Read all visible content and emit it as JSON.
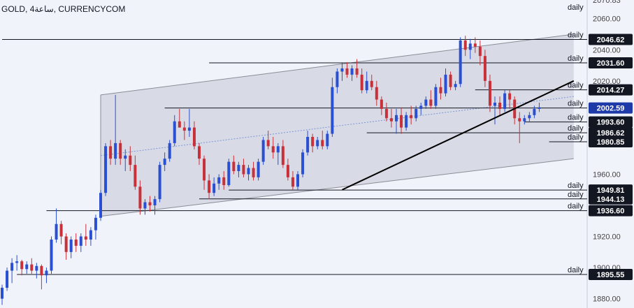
{
  "header": {
    "symbol": "GOLD",
    "interval": "4ساعة",
    "source": "CURRENCYCOM"
  },
  "colors": {
    "background": "#f0f3fa",
    "channel_fill": "#d3d6e0",
    "channel_line": "#8a8d96",
    "midline": "#7b96d8",
    "bull": "#2b4fd1",
    "bear": "#c8303a",
    "level_line": "#131722",
    "price_badge": "#131722",
    "current_badge": "#1e3aa8",
    "axis_text": "#444444"
  },
  "chart_data": {
    "type": "candlestick",
    "title": "",
    "ylim": [
      1874,
      2072
    ],
    "y_ticks": [
      {
        "value": 2060,
        "label": "2060.00"
      },
      {
        "value": 2040,
        "label": "2040.00"
      },
      {
        "value": 2020,
        "label": "2020.00"
      },
      {
        "value": 1960,
        "label": "1960.00"
      },
      {
        "value": 1920,
        "label": "1920.00"
      },
      {
        "value": 1900,
        "label": "1900.00"
      },
      {
        "value": 1880,
        "label": "1880.00"
      }
    ],
    "top_cut_label": "2070.83",
    "levels": [
      {
        "value": 2046.62,
        "label": "2046.62",
        "tag": "daily",
        "x_start": 0,
        "current": false
      },
      {
        "value": 2031.6,
        "label": "2031.60",
        "tag": "daily",
        "x_start": 42,
        "current": false
      },
      {
        "value": 2014.27,
        "label": "2014.27",
        "tag": "daily",
        "x_start": 96,
        "current": false
      },
      {
        "value": 2002.59,
        "label": "2002.59",
        "tag": "daily",
        "x_start": 33,
        "current": true
      },
      {
        "value": 1993.6,
        "label": "1993.60",
        "tag": "daily",
        "x_start": 106,
        "current": false
      },
      {
        "value": 1986.62,
        "label": "1986.62",
        "tag": "daily",
        "x_start": 74,
        "current": false
      },
      {
        "value": 1980.85,
        "label": "1980.85",
        "tag": "daily",
        "x_start": 111,
        "current": false
      },
      {
        "value": 1949.81,
        "label": "1949.81",
        "tag": "daily",
        "x_start": 46,
        "current": false
      },
      {
        "value": 1944.13,
        "label": "1944.13",
        "tag": "daily",
        "x_start": 40,
        "current": false
      },
      {
        "value": 1936.6,
        "label": "1936.60",
        "tag": "daily",
        "x_start": 9,
        "current": false
      },
      {
        "value": 1895.55,
        "label": "1895.55",
        "tag": "daily",
        "x_start": 3,
        "current": false
      }
    ],
    "channel": {
      "start_index": 20,
      "end_index": 116,
      "upper": [
        2011.0,
        2050.0
      ],
      "lower": [
        1933.0,
        1970.0
      ],
      "mid": [
        1972.0,
        2010.0
      ]
    },
    "trendline": {
      "from": [
        69,
        1950.0
      ],
      "to": [
        116,
        2020.0
      ]
    },
    "candles": [
      [
        1880.0,
        1889.0,
        1876.0,
        1887.0
      ],
      [
        1887.0,
        1900.0,
        1885.0,
        1898.0
      ],
      [
        1898.0,
        1906.0,
        1890.0,
        1903.0
      ],
      [
        1903.0,
        1908.0,
        1898.0,
        1904.0
      ],
      [
        1904.0,
        1905.0,
        1895.0,
        1899.0
      ],
      [
        1899.0,
        1904.0,
        1896.0,
        1902.0
      ],
      [
        1902.0,
        1906.0,
        1896.0,
        1898.0
      ],
      [
        1898.0,
        1903.0,
        1893.0,
        1901.0
      ],
      [
        1901.0,
        1902.0,
        1886.0,
        1895.0
      ],
      [
        1895.0,
        1900.0,
        1890.0,
        1898.0
      ],
      [
        1898.0,
        1920.0,
        1896.0,
        1918.0
      ],
      [
        1918.0,
        1938.0,
        1916.0,
        1928.0
      ],
      [
        1928.0,
        1930.0,
        1915.0,
        1920.0
      ],
      [
        1920.0,
        1922.0,
        1905.0,
        1910.0
      ],
      [
        1910.0,
        1920.0,
        1906.0,
        1918.0
      ],
      [
        1918.0,
        1922.0,
        1910.0,
        1914.0
      ],
      [
        1914.0,
        1922.0,
        1910.0,
        1920.0
      ],
      [
        1920.0,
        1928.0,
        1914.0,
        1918.0
      ],
      [
        1918.0,
        1926.0,
        1914.0,
        1924.0
      ],
      [
        1924.0,
        1934.0,
        1918.0,
        1932.0
      ],
      [
        1932.0,
        1950.0,
        1930.0,
        1948.0
      ],
      [
        1948.0,
        1980.0,
        1946.0,
        1978.0
      ],
      [
        1978.0,
        1982.0,
        1966.0,
        1970.0
      ],
      [
        1970.0,
        2011.0,
        1966.0,
        1980.0
      ],
      [
        1980.0,
        1982.0,
        1966.0,
        1970.0
      ],
      [
        1970.0,
        1976.0,
        1962.0,
        1972.0
      ],
      [
        1972.0,
        1978.0,
        1962.0,
        1966.0
      ],
      [
        1966.0,
        1972.0,
        1950.0,
        1952.0
      ],
      [
        1952.0,
        1956.0,
        1934.0,
        1938.0
      ],
      [
        1938.0,
        1944.0,
        1934.0,
        1942.0
      ],
      [
        1942.0,
        1946.0,
        1936.0,
        1940.0
      ],
      [
        1940.0,
        1946.0,
        1934.0,
        1944.0
      ],
      [
        1944.0,
        1968.0,
        1942.0,
        1966.0
      ],
      [
        1966.0,
        1974.0,
        1962.0,
        1970.0
      ],
      [
        1970.0,
        1982.0,
        1968.0,
        1980.0
      ],
      [
        1980.0,
        1998.0,
        1978.0,
        1994.0
      ],
      [
        1994.0,
        2002.0,
        1990.0,
        1990.0
      ],
      [
        1990.0,
        1994.0,
        1982.0,
        1988.0
      ],
      [
        1988.0,
        2002.0,
        1984.0,
        1990.0
      ],
      [
        1990.0,
        1994.0,
        1976.0,
        1978.0
      ],
      [
        1978.0,
        1980.0,
        1966.0,
        1970.0
      ],
      [
        1970.0,
        1972.0,
        1950.0,
        1956.0
      ],
      [
        1956.0,
        1960.0,
        1944.0,
        1948.0
      ],
      [
        1948.0,
        1958.0,
        1946.0,
        1954.0
      ],
      [
        1954.0,
        1960.0,
        1950.0,
        1958.0
      ],
      [
        1958.0,
        1962.0,
        1950.0,
        1953.0
      ],
      [
        1953.0,
        1970.0,
        1952.0,
        1968.0
      ],
      [
        1968.0,
        1972.0,
        1960.0,
        1962.0
      ],
      [
        1962.0,
        1968.0,
        1958.0,
        1966.0
      ],
      [
        1966.0,
        1970.0,
        1958.0,
        1960.0
      ],
      [
        1960.0,
        1966.0,
        1956.0,
        1964.0
      ],
      [
        1964.0,
        1968.0,
        1956.0,
        1958.0
      ],
      [
        1958.0,
        1970.0,
        1956.0,
        1968.0
      ],
      [
        1968.0,
        1984.0,
        1966.0,
        1982.0
      ],
      [
        1982.0,
        1988.0,
        1976.0,
        1978.0
      ],
      [
        1978.0,
        1984.0,
        1970.0,
        1974.0
      ],
      [
        1974.0,
        1980.0,
        1966.0,
        1978.0
      ],
      [
        1978.0,
        1982.0,
        1964.0,
        1966.0
      ],
      [
        1966.0,
        1970.0,
        1956.0,
        1958.0
      ],
      [
        1958.0,
        1962.0,
        1950.0,
        1952.0
      ],
      [
        1952.0,
        1962.0,
        1950.0,
        1960.0
      ],
      [
        1960.0,
        1976.0,
        1958.0,
        1974.0
      ],
      [
        1974.0,
        1988.0,
        1972.0,
        1984.0
      ],
      [
        1984.0,
        1986.0,
        1974.0,
        1978.0
      ],
      [
        1978.0,
        1984.0,
        1976.0,
        1982.0
      ],
      [
        1982.0,
        1988.0,
        1976.0,
        1978.0
      ],
      [
        1978.0,
        1988.0,
        1976.0,
        1986.0
      ],
      [
        1986.0,
        2022.0,
        1984.0,
        2016.0
      ],
      [
        2016.0,
        2028.0,
        2012.0,
        2026.0
      ],
      [
        2026.0,
        2032.0,
        2020.0,
        2028.0
      ],
      [
        2028.0,
        2032.0,
        2022.0,
        2024.0
      ],
      [
        2024.0,
        2030.0,
        2020.0,
        2028.0
      ],
      [
        2028.0,
        2034.0,
        2022.0,
        2024.0
      ],
      [
        2024.0,
        2028.0,
        2012.0,
        2014.0
      ],
      [
        2014.0,
        2026.0,
        2012.0,
        2020.0
      ],
      [
        2020.0,
        2024.0,
        2014.0,
        2016.0
      ],
      [
        2016.0,
        2020.0,
        2004.0,
        2008.0
      ],
      [
        2008.0,
        2010.0,
        1998.0,
        2002.0
      ],
      [
        2002.0,
        2006.0,
        1994.0,
        1996.0
      ],
      [
        1996.0,
        2002.0,
        1990.0,
        1994.0
      ],
      [
        1994.0,
        2002.0,
        1986.0,
        1998.0
      ],
      [
        1998.0,
        2003.0,
        1986.0,
        1990.0
      ],
      [
        1990.0,
        2000.0,
        1988.0,
        1998.0
      ],
      [
        1998.0,
        2004.0,
        1992.0,
        1996.0
      ],
      [
        1996.0,
        2004.0,
        1994.0,
        2002.0
      ],
      [
        2002.0,
        2006.0,
        1998.0,
        2004.0
      ],
      [
        2004.0,
        2010.0,
        2002.0,
        2008.0
      ],
      [
        2008.0,
        2014.0,
        2002.0,
        2004.0
      ],
      [
        2004.0,
        2018.0,
        2002.0,
        2016.0
      ],
      [
        2016.0,
        2022.0,
        2008.0,
        2012.0
      ],
      [
        2012.0,
        2028.0,
        2010.0,
        2024.0
      ],
      [
        2024.0,
        2026.0,
        2014.0,
        2016.0
      ],
      [
        2016.0,
        2020.0,
        2014.0,
        2018.0
      ],
      [
        2018.0,
        2048.0,
        2016.0,
        2046.0
      ],
      [
        2046.0,
        2049.0,
        2036.0,
        2040.0
      ],
      [
        2040.0,
        2047.0,
        2034.0,
        2044.0
      ],
      [
        2044.0,
        2048.0,
        2038.0,
        2042.0
      ],
      [
        2042.0,
        2046.0,
        2030.0,
        2036.0
      ],
      [
        2036.0,
        2040.0,
        2016.0,
        2020.0
      ],
      [
        2020.0,
        2024.0,
        2000.0,
        2004.0
      ],
      [
        2004.0,
        2010.0,
        1992.0,
        2006.0
      ],
      [
        2006.0,
        2010.0,
        1998.0,
        2002.0
      ],
      [
        2002.0,
        2014.0,
        2000.0,
        2012.0
      ],
      [
        2012.0,
        2014.0,
        2002.0,
        2008.0
      ],
      [
        2008.0,
        2010.0,
        1992.0,
        1996.0
      ],
      [
        1996.0,
        2000.0,
        1980.0,
        1994.0
      ],
      [
        1994.0,
        1998.0,
        1992.0,
        1996.0
      ],
      [
        1996.0,
        2000.0,
        1994.0,
        1998.0
      ],
      [
        1998.0,
        2004.0,
        1996.0,
        2002.0
      ],
      [
        2002.0,
        2006.0,
        2000.0,
        2003.0
      ]
    ]
  }
}
